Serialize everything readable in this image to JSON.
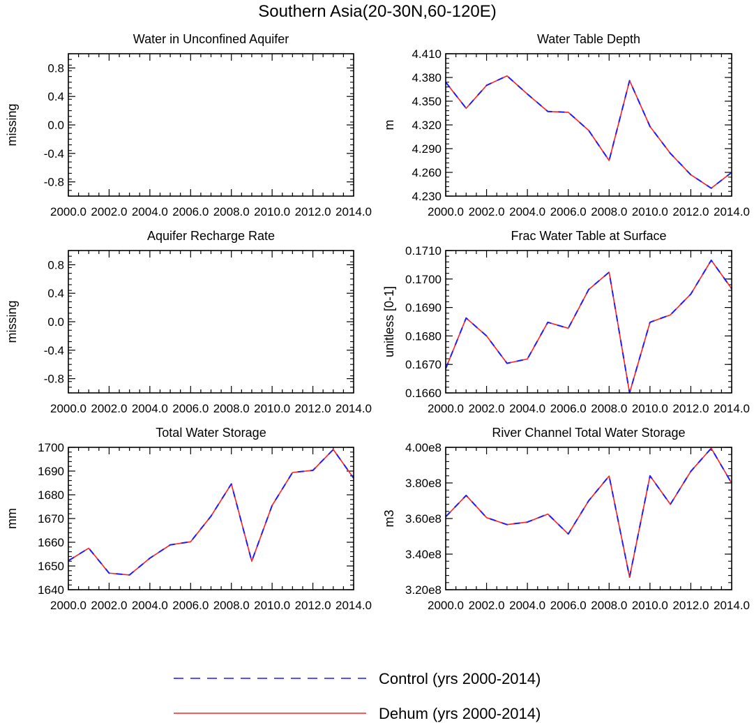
{
  "figure": {
    "title": "Southern Asia(20-30N,60-120E)"
  },
  "legend": {
    "items": [
      {
        "label": "Control (yrs 2000-2014)",
        "color": "#1a1aff",
        "dashed": true
      },
      {
        "label": "Dehum (yrs 2000-2014)",
        "color": "#ff2020",
        "dashed": false
      }
    ]
  },
  "chart_data": [
    {
      "type": "line",
      "title": "Water in Unconfined Aquifer",
      "xlabel": "",
      "ylabel": "missing",
      "xlim": [
        2000,
        2014
      ],
      "ylim": [
        -1.0,
        1.0
      ],
      "yticks": [
        "0.8",
        "0.4",
        "0.0",
        "-0.4",
        "-0.8"
      ],
      "ytick_values": [
        0.8,
        0.4,
        0.0,
        -0.4,
        -0.8
      ],
      "xticks": [
        "2000.0",
        "2002.0",
        "2004.0",
        "2006.0",
        "2008.0",
        "2010.0",
        "2012.0",
        "2014.0"
      ],
      "x": [],
      "series": []
    },
    {
      "type": "line",
      "title": "Water Table Depth",
      "xlabel": "",
      "ylabel": "m",
      "xlim": [
        2000,
        2014
      ],
      "ylim": [
        4.23,
        4.41
      ],
      "yticks": [
        "4.410",
        "4.380",
        "4.350",
        "4.320",
        "4.290",
        "4.260",
        "4.230"
      ],
      "ytick_values": [
        4.41,
        4.38,
        4.35,
        4.32,
        4.29,
        4.26,
        4.23
      ],
      "xticks": [
        "2000.0",
        "2002.0",
        "2004.0",
        "2006.0",
        "2008.0",
        "2010.0",
        "2012.0",
        "2014.0"
      ],
      "x": [
        2000,
        2001,
        2002,
        2003,
        2004,
        2005,
        2006,
        2007,
        2008,
        2009,
        2010,
        2011,
        2012,
        2013,
        2014
      ],
      "series": [
        {
          "name": "Control (yrs 2000-2014)",
          "values": [
            4.374,
            4.341,
            4.37,
            4.382,
            4.359,
            4.337,
            4.336,
            4.313,
            4.275,
            4.376,
            4.318,
            4.284,
            4.257,
            4.24,
            4.26
          ]
        },
        {
          "name": "Dehum (yrs 2000-2014)",
          "values": [
            4.374,
            4.341,
            4.37,
            4.382,
            4.359,
            4.337,
            4.336,
            4.313,
            4.275,
            4.376,
            4.318,
            4.284,
            4.257,
            4.24,
            4.26
          ]
        }
      ]
    },
    {
      "type": "line",
      "title": "Aquifer Recharge Rate",
      "xlabel": "",
      "ylabel": "missing",
      "xlim": [
        2000,
        2014
      ],
      "ylim": [
        -1.0,
        1.0
      ],
      "yticks": [
        "0.8",
        "0.4",
        "0.0",
        "-0.4",
        "-0.8"
      ],
      "ytick_values": [
        0.8,
        0.4,
        0.0,
        -0.4,
        -0.8
      ],
      "xticks": [
        "2000.0",
        "2002.0",
        "2004.0",
        "2006.0",
        "2008.0",
        "2010.0",
        "2012.0",
        "2014.0"
      ],
      "x": [],
      "series": []
    },
    {
      "type": "line",
      "title": "Frac Water Table at Surface",
      "xlabel": "",
      "ylabel": "unitless [0-1]",
      "xlim": [
        2000,
        2014
      ],
      "ylim": [
        0.166,
        0.171
      ],
      "yticks": [
        "0.1710",
        "0.1700",
        "0.1690",
        "0.1680",
        "0.1670",
        "0.1660"
      ],
      "ytick_values": [
        0.171,
        0.17,
        0.169,
        0.168,
        0.167,
        0.166
      ],
      "xticks": [
        "2000.0",
        "2002.0",
        "2004.0",
        "2006.0",
        "2008.0",
        "2010.0",
        "2012.0",
        "2014.0"
      ],
      "x": [
        2000,
        2001,
        2002,
        2003,
        2004,
        2005,
        2006,
        2007,
        2008,
        2009,
        2010,
        2011,
        2012,
        2013,
        2014
      ],
      "series": [
        {
          "name": "Control (yrs 2000-2014)",
          "values": [
            0.16685,
            0.16863,
            0.168,
            0.16704,
            0.16719,
            0.16848,
            0.16827,
            0.16963,
            0.17024,
            0.166,
            0.16848,
            0.16874,
            0.16947,
            0.17066,
            0.16966
          ]
        },
        {
          "name": "Dehum (yrs 2000-2014)",
          "values": [
            0.16685,
            0.16863,
            0.168,
            0.16704,
            0.16719,
            0.16848,
            0.16827,
            0.16963,
            0.17024,
            0.166,
            0.16848,
            0.16874,
            0.16947,
            0.17066,
            0.16966
          ]
        }
      ]
    },
    {
      "type": "line",
      "title": "Total Water Storage",
      "xlabel": "",
      "ylabel": "mm",
      "xlim": [
        2000,
        2014
      ],
      "ylim": [
        1640,
        1700
      ],
      "yticks": [
        "1700",
        "1690",
        "1680",
        "1670",
        "1660",
        "1650",
        "1640"
      ],
      "ytick_values": [
        1700,
        1690,
        1680,
        1670,
        1660,
        1650,
        1640
      ],
      "xticks": [
        "2000.0",
        "2002.0",
        "2004.0",
        "2006.0",
        "2008.0",
        "2010.0",
        "2012.0",
        "2014.0"
      ],
      "x": [
        2000,
        2001,
        2002,
        2003,
        2004,
        2005,
        2006,
        2007,
        2008,
        2009,
        2010,
        2011,
        2012,
        2013,
        2014
      ],
      "series": [
        {
          "name": "Control (yrs 2000-2014)",
          "values": [
            1652.2,
            1657.5,
            1647.0,
            1646.2,
            1653.3,
            1658.9,
            1660.2,
            1671.0,
            1684.6,
            1652.0,
            1675.5,
            1689.4,
            1690.3,
            1699.1,
            1687.0
          ]
        },
        {
          "name": "Dehum (yrs 2000-2014)",
          "values": [
            1652.2,
            1657.5,
            1647.0,
            1646.2,
            1653.3,
            1658.9,
            1660.2,
            1671.0,
            1684.6,
            1652.0,
            1675.5,
            1689.4,
            1690.3,
            1699.1,
            1687.0
          ]
        }
      ]
    },
    {
      "type": "line",
      "title": "River Channel Total Water Storage",
      "xlabel": "",
      "ylabel": "m3",
      "xlim": [
        2000,
        2014
      ],
      "ylim": [
        320000000,
        400000000
      ],
      "yticks": [
        "4.00e8",
        "3.80e8",
        "3.60e8",
        "3.40e8",
        "3.20e8"
      ],
      "ytick_values": [
        400000000,
        380000000,
        360000000,
        340000000,
        320000000
      ],
      "xticks": [
        "2000.0",
        "2002.0",
        "2004.0",
        "2006.0",
        "2008.0",
        "2010.0",
        "2012.0",
        "2014.0"
      ],
      "x": [
        2000,
        2001,
        2002,
        2003,
        2004,
        2005,
        2006,
        2007,
        2008,
        2009,
        2010,
        2011,
        2012,
        2013,
        2014
      ],
      "series": [
        {
          "name": "Control (yrs 2000-2014)",
          "values": [
            361000000,
            373000000,
            360500000,
            356600000,
            358000000,
            362500000,
            351300000,
            370000000,
            383900000,
            327000000,
            384000000,
            368000000,
            386500000,
            399500000,
            379800000
          ]
        },
        {
          "name": "Dehum (yrs 2000-2014)",
          "values": [
            361000000,
            373000000,
            360500000,
            356600000,
            358000000,
            362500000,
            351300000,
            370000000,
            383900000,
            327000000,
            384000000,
            368000000,
            386500000,
            399500000,
            379800000
          ]
        }
      ]
    }
  ]
}
